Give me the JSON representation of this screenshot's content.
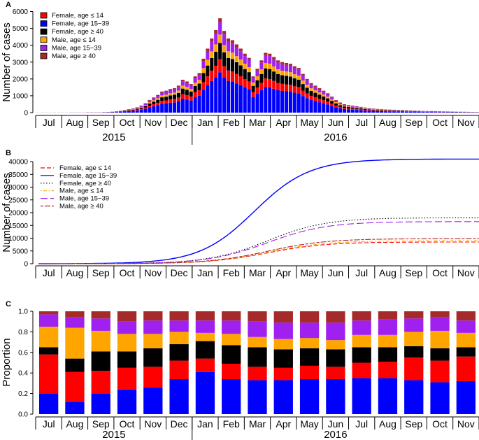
{
  "colors": {
    "female_le14": "#ff0000",
    "female_15_39": "#0000ff",
    "female_ge40": "#000000",
    "male_le14": "#ffa500",
    "male_15_39": "#a020f0",
    "male_ge40": "#a52a2a"
  },
  "chart_data": [
    {
      "panel": "A",
      "type": "bar",
      "stacked": true,
      "ylabel": "Number of cases",
      "ylim": [
        0,
        6000
      ],
      "yticks": [
        0,
        1000,
        2000,
        3000,
        4000,
        5000,
        6000
      ],
      "months": [
        "Jul",
        "Aug",
        "Sep",
        "Oct",
        "Nov",
        "Dec",
        "Jan",
        "Feb",
        "Mar",
        "Apr",
        "May",
        "Jun",
        "Jul",
        "Aug",
        "Sep",
        "Oct",
        "Nov"
      ],
      "years": [
        "2015",
        "2016"
      ],
      "legend": [
        {
          "label": "Female, age ≤ 14",
          "key": "female_le14"
        },
        {
          "label": "Female, age 15−39",
          "key": "female_15_39"
        },
        {
          "label": "Female, age ≥ 40",
          "key": "female_ge40"
        },
        {
          "label": "Male, age ≤ 14",
          "key": "male_le14"
        },
        {
          "label": "Male, age 15−39",
          "key": "male_15_39"
        },
        {
          "label": "Male, age ≥ 40",
          "key": "male_ge40"
        }
      ],
      "weekly_totals": [
        5,
        5,
        5,
        5,
        5,
        5,
        5,
        5,
        10,
        10,
        10,
        10,
        20,
        20,
        20,
        20,
        30,
        40,
        60,
        80,
        110,
        150,
        200,
        250,
        320,
        420,
        560,
        750,
        900,
        1050,
        1250,
        1300,
        1400,
        1450,
        1600,
        1950,
        1850,
        1700,
        2150,
        2350,
        3200,
        3800,
        4400,
        4900,
        5600,
        4850,
        4400,
        4300,
        4050,
        3800,
        3500,
        3250,
        2150,
        2600,
        3100,
        3550,
        3500,
        3300,
        3100,
        3000,
        2950,
        2900,
        2750,
        2650,
        2300,
        2000,
        1750,
        1600,
        1450,
        1300,
        1150,
        950,
        750,
        600,
        500,
        450,
        420,
        380,
        340,
        300,
        270,
        240,
        220,
        200,
        190,
        180,
        170,
        160,
        150,
        140,
        130,
        120,
        110,
        100,
        95,
        90,
        85,
        80,
        75,
        70,
        65,
        60,
        55,
        50,
        45,
        40,
        38
      ]
    },
    {
      "panel": "B",
      "type": "line",
      "ylabel": "Number of cases",
      "ylim": [
        0,
        40000
      ],
      "yticks": [
        0,
        5000,
        10000,
        15000,
        20000,
        25000,
        30000,
        35000,
        40000
      ],
      "series": [
        {
          "name": "Female, age ≤ 14",
          "key": "female_le14",
          "dash": "dashed",
          "final": 8500
        },
        {
          "name": "Female, age 15−39",
          "key": "female_15_39",
          "dash": "solid",
          "final": 41000
        },
        {
          "name": "Female, age ≥ 40",
          "key": "female_ge40",
          "dash": "dotted",
          "final": 18000
        },
        {
          "name": "Male, age ≤ 14",
          "key": "male_le14",
          "dash": "dotdash",
          "final": 9000
        },
        {
          "name": "Male, age 15−39",
          "key": "male_15_39",
          "dash": "longdash",
          "final": 16500
        },
        {
          "name": "Male, age ≥ 40",
          "key": "male_ge40",
          "dash": "twodash",
          "final": 9800
        }
      ]
    },
    {
      "panel": "C",
      "type": "bar",
      "stacked": true,
      "ylabel": "Proportion",
      "ylim": [
        0,
        1
      ],
      "yticks": [
        "0.0",
        "0.2",
        "0.4",
        "0.6",
        "0.8",
        "1.0"
      ],
      "categories": [
        "Jul",
        "Aug",
        "Sep",
        "Oct",
        "Nov",
        "Dec",
        "Jan",
        "Feb",
        "Mar",
        "Apr",
        "May",
        "Jun",
        "Jul",
        "Aug",
        "Sep",
        "Oct",
        "Nov"
      ],
      "cumulative_tops": [
        [
          0.2,
          0.58,
          0.65,
          0.85,
          0.97,
          1.0
        ],
        [
          0.12,
          0.41,
          0.54,
          0.84,
          0.94,
          1.0
        ],
        [
          0.2,
          0.42,
          0.61,
          0.81,
          0.93,
          1.0
        ],
        [
          0.24,
          0.45,
          0.61,
          0.78,
          0.9,
          1.0
        ],
        [
          0.26,
          0.46,
          0.64,
          0.78,
          0.91,
          1.0
        ],
        [
          0.34,
          0.52,
          0.68,
          0.8,
          0.91,
          1.0
        ],
        [
          0.41,
          0.54,
          0.71,
          0.79,
          0.91,
          1.0
        ],
        [
          0.34,
          0.49,
          0.67,
          0.78,
          0.91,
          1.0
        ],
        [
          0.33,
          0.46,
          0.65,
          0.75,
          0.9,
          1.0
        ],
        [
          0.33,
          0.45,
          0.63,
          0.73,
          0.89,
          1.0
        ],
        [
          0.34,
          0.47,
          0.64,
          0.74,
          0.89,
          1.0
        ],
        [
          0.34,
          0.46,
          0.63,
          0.72,
          0.89,
          1.0
        ],
        [
          0.35,
          0.5,
          0.65,
          0.77,
          0.91,
          1.0
        ],
        [
          0.35,
          0.51,
          0.65,
          0.77,
          0.92,
          1.0
        ],
        [
          0.33,
          0.55,
          0.66,
          0.8,
          0.93,
          1.0
        ],
        [
          0.31,
          0.52,
          0.64,
          0.81,
          0.94,
          1.0
        ],
        [
          0.32,
          0.56,
          0.65,
          0.79,
          0.91,
          1.0
        ]
      ]
    }
  ]
}
